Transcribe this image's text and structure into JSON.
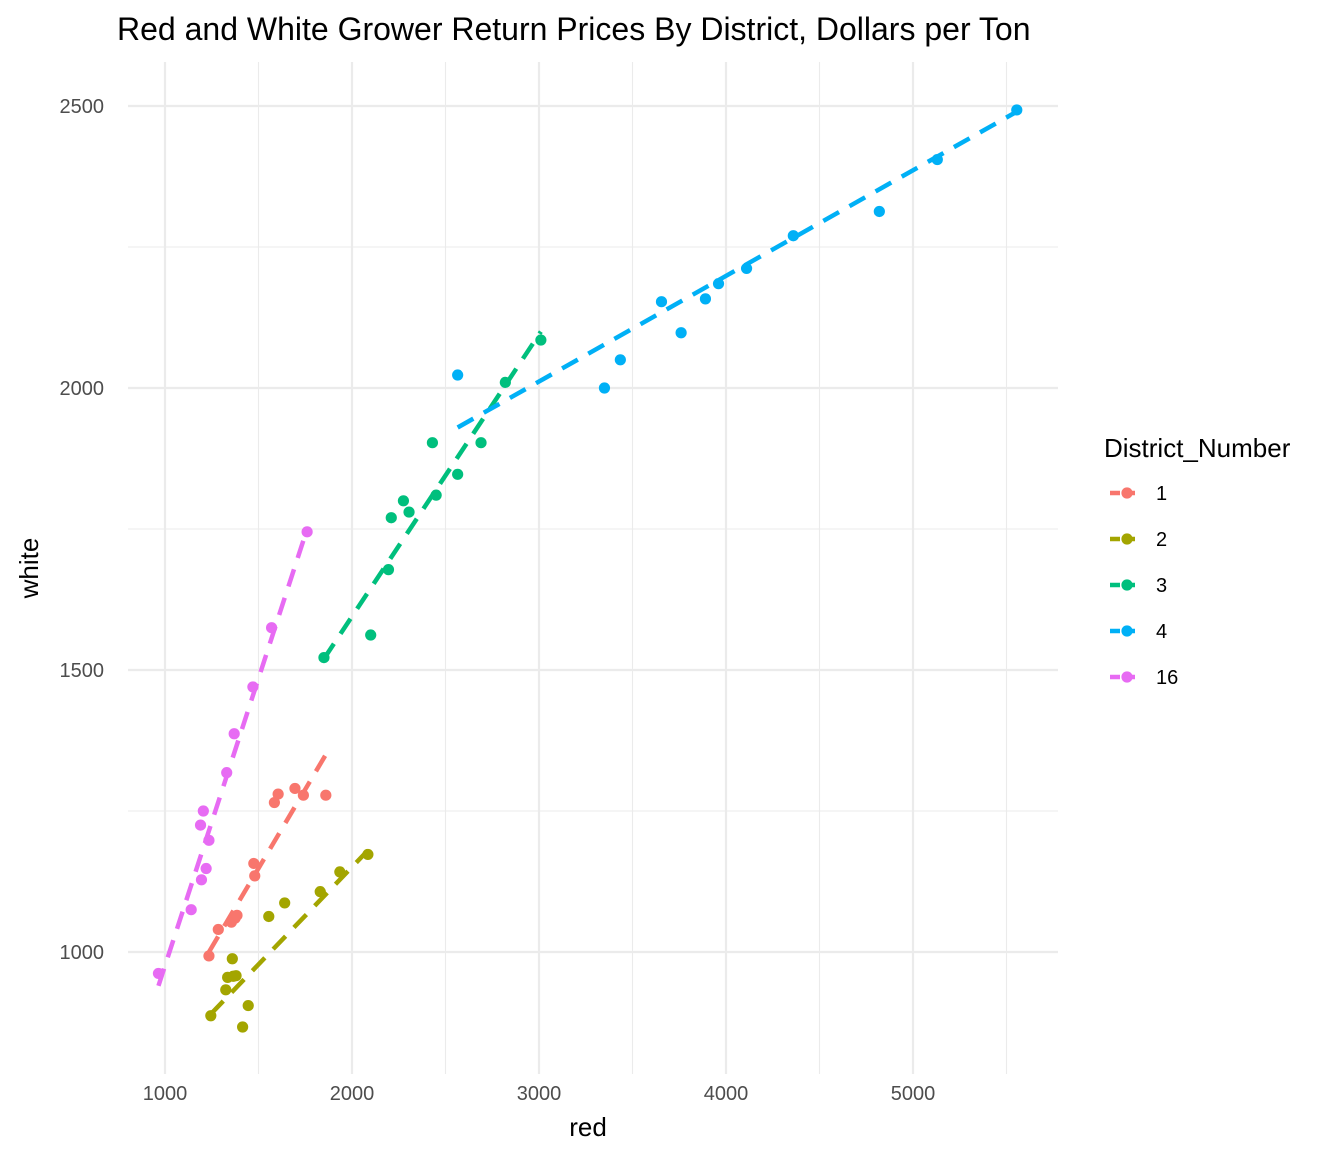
{
  "chart_data": {
    "type": "scatter",
    "title": "Red and White Grower Return Prices By District, Dollars per Ton",
    "xlabel": "red",
    "ylabel": "white",
    "xlim": [
      850,
      5600
    ],
    "ylim": [
      840,
      2570
    ],
    "x_ticks": [
      1000,
      2000,
      3000,
      4000,
      5000
    ],
    "y_ticks": [
      1000,
      1500,
      2000,
      2500
    ],
    "x_tick_labels": [
      "1000",
      "2000",
      "3000",
      "4000",
      "5000"
    ],
    "y_tick_labels": [
      "1000",
      "1500",
      "2000",
      "2500"
    ],
    "grid": true,
    "legend": {
      "title": "District_Number",
      "position": "right"
    },
    "series": [
      {
        "name": "1",
        "color": "#F8766D",
        "points": [
          [
            1235,
            993
          ],
          [
            1285,
            1040
          ],
          [
            1355,
            1053
          ],
          [
            1375,
            1060
          ],
          [
            1385,
            1065
          ],
          [
            1475,
            1157
          ],
          [
            1480,
            1135
          ],
          [
            1585,
            1265
          ],
          [
            1605,
            1280
          ],
          [
            1695,
            1290
          ],
          [
            1740,
            1278
          ],
          [
            1860,
            1278
          ]
        ],
        "fit": [
          [
            1235,
            1000
          ],
          [
            1860,
            1350
          ]
        ]
      },
      {
        "name": "2",
        "color": "#A3A500",
        "points": [
          [
            1245,
            887
          ],
          [
            1325,
            933
          ],
          [
            1335,
            955
          ],
          [
            1360,
            988
          ],
          [
            1365,
            957
          ],
          [
            1380,
            958
          ],
          [
            1415,
            867
          ],
          [
            1445,
            905
          ],
          [
            1555,
            1063
          ],
          [
            1640,
            1087
          ],
          [
            1830,
            1107
          ],
          [
            1935,
            1142
          ],
          [
            2085,
            1173
          ]
        ],
        "fit": [
          [
            1245,
            890
          ],
          [
            2085,
            1180
          ]
        ]
      },
      {
        "name": "3",
        "color": "#00BF7D",
        "points": [
          [
            1850,
            1522
          ],
          [
            2100,
            1562
          ],
          [
            2195,
            1678
          ],
          [
            2210,
            1770
          ],
          [
            2275,
            1800
          ],
          [
            2305,
            1780
          ],
          [
            2430,
            1903
          ],
          [
            2450,
            1810
          ],
          [
            2565,
            1847
          ],
          [
            2690,
            1903
          ],
          [
            2820,
            2010
          ],
          [
            3010,
            2085
          ]
        ],
        "fit": [
          [
            1850,
            1520
          ],
          [
            3010,
            2100
          ]
        ]
      },
      {
        "name": "4",
        "color": "#00B0F6",
        "points": [
          [
            2565,
            2023
          ],
          [
            3350,
            2000
          ],
          [
            3435,
            2050
          ],
          [
            3655,
            2153
          ],
          [
            3760,
            2098
          ],
          [
            3890,
            2158
          ],
          [
            3960,
            2185
          ],
          [
            4110,
            2212
          ],
          [
            4360,
            2270
          ],
          [
            4820,
            2313
          ],
          [
            5130,
            2405
          ],
          [
            5555,
            2493
          ]
        ],
        "fit": [
          [
            2565,
            1930
          ],
          [
            5555,
            2490
          ]
        ]
      },
      {
        "name": "16",
        "color": "#E76BF3",
        "points": [
          [
            965,
            962
          ],
          [
            1140,
            1075
          ],
          [
            1190,
            1225
          ],
          [
            1195,
            1128
          ],
          [
            1205,
            1250
          ],
          [
            1220,
            1148
          ],
          [
            1235,
            1198
          ],
          [
            1330,
            1318
          ],
          [
            1370,
            1387
          ],
          [
            1470,
            1470
          ],
          [
            1570,
            1575
          ],
          [
            1760,
            1745
          ]
        ],
        "fit": [
          [
            965,
            940
          ],
          [
            1760,
            1750
          ]
        ]
      }
    ]
  }
}
